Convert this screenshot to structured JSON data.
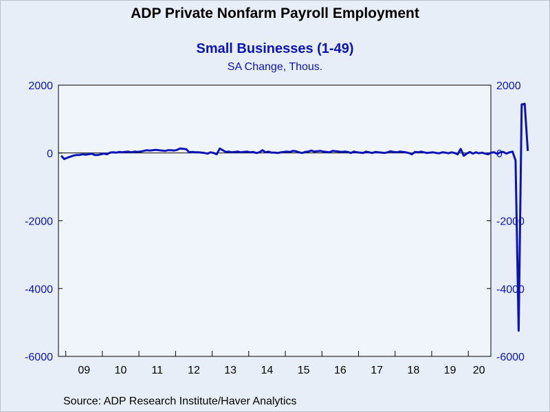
{
  "header": {
    "title": "ADP Private Nonfarm Payroll Employment",
    "subtitle": "Small Businesses (1-49)",
    "units": "SA Change, Thous."
  },
  "footer": {
    "source": "Source:  ADP Research Institute/Haver Analytics"
  },
  "colors": {
    "background": "#e8eef8",
    "plot_background": "#f0f5fc",
    "series": "#0a14b4",
    "text_accent": "#0a14b4"
  },
  "chart_data": {
    "type": "line",
    "title": "ADP Private Nonfarm Payroll Employment",
    "subtitle": "Small Businesses (1-49)",
    "ylabel": "SA Change, Thous.",
    "ylim": [
      -6000,
      2000
    ],
    "yticks": [
      2000,
      0,
      -2000,
      -4000,
      -6000
    ],
    "ytick_labels": [
      "2000",
      "0",
      "-2000",
      "-4000",
      "-6000"
    ],
    "dual_axis": true,
    "grid": false,
    "zero_line": true,
    "x_start": "2008-11",
    "x_end": "2020-07",
    "xtick_labels": [
      "09",
      "10",
      "11",
      "12",
      "13",
      "14",
      "15",
      "16",
      "17",
      "18",
      "19",
      "20"
    ],
    "series": [
      {
        "values": [
          -80,
          -180,
          -140,
          -110,
          -80,
          -60,
          -60,
          -40,
          -50,
          -40,
          -20,
          -60,
          -60,
          -40,
          -20,
          -40,
          10,
          20,
          10,
          30,
          20,
          30,
          40,
          20,
          40,
          30,
          40,
          60,
          80,
          70,
          80,
          90,
          80,
          70,
          60,
          80,
          80,
          70,
          90,
          130,
          120,
          110,
          20,
          30,
          20,
          20,
          10,
          0,
          -20,
          20,
          0,
          -40,
          130,
          80,
          30,
          40,
          20,
          30,
          40,
          20,
          30,
          40,
          20,
          30,
          0,
          20,
          80,
          20,
          40,
          10,
          10,
          0,
          20,
          30,
          40,
          30,
          60,
          50,
          20,
          0,
          30,
          40,
          70,
          40,
          50,
          60,
          40,
          30,
          20,
          60,
          50,
          40,
          30,
          40,
          30,
          0,
          40,
          20,
          10,
          0,
          40,
          20,
          0,
          30,
          20,
          10,
          0,
          20,
          50,
          30,
          20,
          40,
          30,
          20,
          0,
          -40,
          30,
          20,
          40,
          20,
          0,
          10,
          20,
          0,
          -10,
          20,
          10,
          -10,
          20,
          0,
          -40,
          120,
          -80,
          -20,
          30,
          -20,
          20,
          -10,
          10,
          -20,
          -40,
          10,
          20,
          -30,
          20,
          30,
          -20,
          20,
          40,
          -220,
          -5240,
          1430,
          1450,
          60
        ]
      }
    ]
  }
}
